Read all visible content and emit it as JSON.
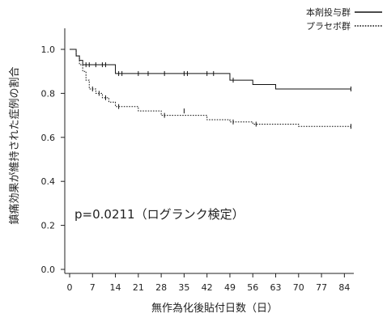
{
  "chart_data": {
    "type": "line",
    "title": "",
    "xlabel": "無作為化後貼付日数（日）",
    "ylabel": "鎮痛効果が維持された症例の割合",
    "xlim": [
      -2,
      88
    ],
    "ylim": [
      0,
      1.1
    ],
    "x_ticks": [
      0,
      7,
      14,
      21,
      28,
      35,
      42,
      49,
      56,
      63,
      70,
      77,
      84
    ],
    "y_ticks": [
      {
        "value": 0,
        "label": "0.0"
      },
      {
        "value": 0.2,
        "label": "0.2"
      },
      {
        "value": 0.4,
        "label": "0.4"
      },
      {
        "value": 0.6,
        "label": "0.6"
      },
      {
        "value": 0.8,
        "label": "0.8"
      },
      {
        "value": 1.0,
        "label": "1.0"
      }
    ],
    "grid": false,
    "legend_position": "top-right",
    "annotation": "p=0.0211（ログランク検定）",
    "series": [
      {
        "name": "本剤投与群",
        "style": "solid",
        "color": "#111111",
        "steps": [
          [
            0,
            1.0
          ],
          [
            2,
            0.97
          ],
          [
            3,
            0.95
          ],
          [
            4,
            0.93
          ],
          [
            14,
            0.89
          ],
          [
            49,
            0.86
          ],
          [
            56,
            0.84
          ],
          [
            63,
            0.82
          ],
          [
            86,
            0.82
          ]
        ],
        "censored": [
          [
            5,
            0.93
          ],
          [
            6,
            0.93
          ],
          [
            8,
            0.93
          ],
          [
            10,
            0.93
          ],
          [
            11,
            0.93
          ],
          [
            15,
            0.89
          ],
          [
            16,
            0.89
          ],
          [
            21,
            0.89
          ],
          [
            24,
            0.89
          ],
          [
            29,
            0.89
          ],
          [
            35,
            0.89
          ],
          [
            36,
            0.89
          ],
          [
            42,
            0.89
          ],
          [
            44,
            0.89
          ],
          [
            50,
            0.86
          ],
          [
            86,
            0.82
          ]
        ]
      },
      {
        "name": "プラセボ群",
        "style": "dotted",
        "color": "#111111",
        "steps": [
          [
            0,
            1.0
          ],
          [
            2,
            0.97
          ],
          [
            3,
            0.93
          ],
          [
            4,
            0.9
          ],
          [
            5,
            0.86
          ],
          [
            6,
            0.82
          ],
          [
            8,
            0.8
          ],
          [
            10,
            0.78
          ],
          [
            12,
            0.76
          ],
          [
            14,
            0.74
          ],
          [
            21,
            0.72
          ],
          [
            28,
            0.7
          ],
          [
            42,
            0.68
          ],
          [
            49,
            0.67
          ],
          [
            56,
            0.66
          ],
          [
            70,
            0.65
          ],
          [
            86,
            0.65
          ]
        ],
        "censored": [
          [
            7,
            0.82
          ],
          [
            9,
            0.8
          ],
          [
            11,
            0.78
          ],
          [
            15,
            0.74
          ],
          [
            29,
            0.7
          ],
          [
            35,
            0.72
          ],
          [
            50,
            0.67
          ],
          [
            57,
            0.66
          ],
          [
            86,
            0.65
          ]
        ]
      }
    ]
  }
}
